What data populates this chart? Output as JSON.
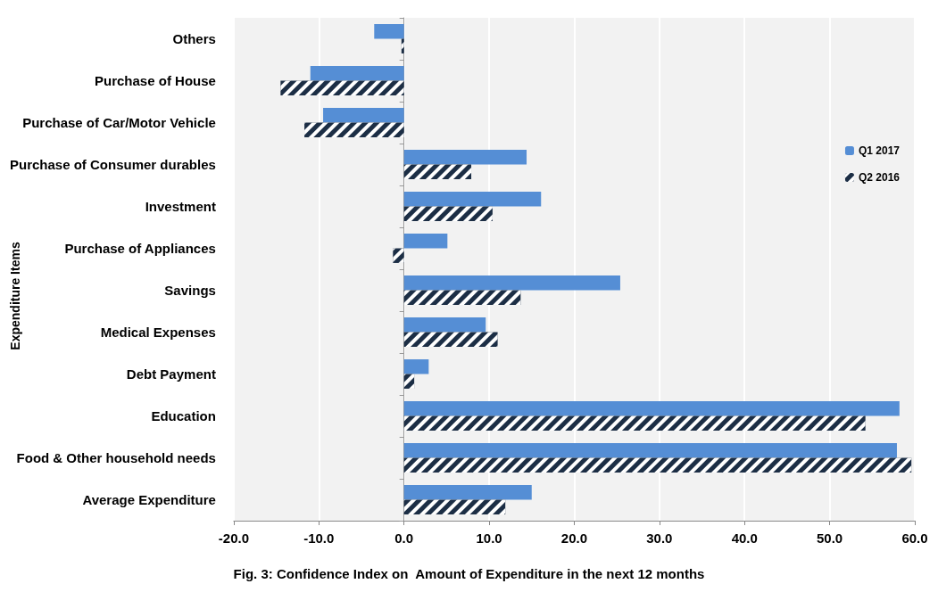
{
  "chart_data": {
    "type": "bar",
    "orientation": "horizontal",
    "title": "Fig. 3: Confidence Index on  Amount of Expenditure in the next 12 months",
    "ylabel": "Expenditure Items",
    "categories": [
      "Others",
      "Purchase of House",
      "Purchase of Car/Motor Vehicle",
      "Purchase of Consumer durables",
      "Investment",
      "Purchase of Appliances",
      "Savings",
      "Medical Expenses",
      "Debt Payment",
      "Education",
      "Food & Other household needs",
      "Average Expenditure"
    ],
    "series": [
      {
        "name": "Q1 2017",
        "color": "#558ed5",
        "values": [
          -3.5,
          -11.0,
          -9.5,
          14.4,
          16.1,
          5.1,
          25.4,
          9.6,
          2.9,
          58.2,
          57.9,
          15.0
        ]
      },
      {
        "name": "Q2 2016",
        "color": "#1c2e45",
        "values": [
          -0.3,
          -14.5,
          -11.7,
          7.9,
          10.4,
          -1.3,
          13.7,
          11.0,
          1.2,
          54.2,
          59.6,
          11.9
        ]
      }
    ],
    "xlim": [
      -20,
      60
    ],
    "xticks": [
      {
        "value": -20,
        "label": "-20.0"
      },
      {
        "value": -10,
        "label": "-10.0"
      },
      {
        "value": 0,
        "label": "0.0"
      },
      {
        "value": 10,
        "label": "10.0"
      },
      {
        "value": 20,
        "label": "20.0"
      },
      {
        "value": 30,
        "label": "30.0"
      },
      {
        "value": 40,
        "label": "40.0"
      },
      {
        "value": 50,
        "label": "50.0"
      },
      {
        "value": 60,
        "label": "60.0"
      }
    ],
    "grid": "x",
    "legend": "right"
  }
}
